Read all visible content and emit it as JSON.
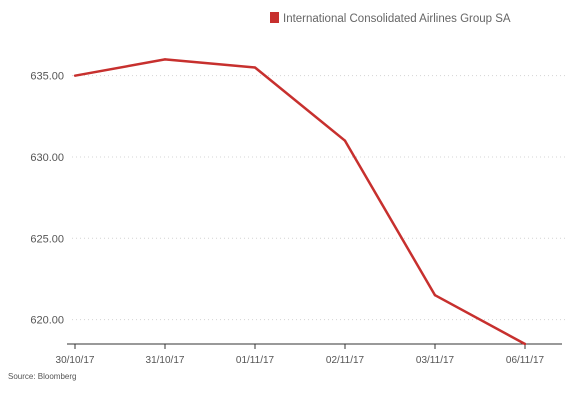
{
  "chart_data": {
    "type": "line",
    "x": [
      "30/10/17",
      "31/10/17",
      "01/11/17",
      "02/11/17",
      "03/11/17",
      "06/11/17"
    ],
    "series": [
      {
        "name": "International Consolidated Airlines Group SA",
        "values": [
          635.0,
          636.0,
          635.5,
          631.0,
          621.5,
          618.5
        ],
        "color": "#c7302e"
      }
    ],
    "y_ticks": [
      "620.00",
      "625.00",
      "630.00",
      "635.00"
    ],
    "y_tick_values": [
      620,
      625,
      630,
      635
    ],
    "ylim": [
      618.5,
      637.5
    ],
    "grid": true,
    "legend_position": "top-right",
    "title": "",
    "xlabel": "",
    "ylabel": ""
  },
  "source": "Source: Bloomberg"
}
